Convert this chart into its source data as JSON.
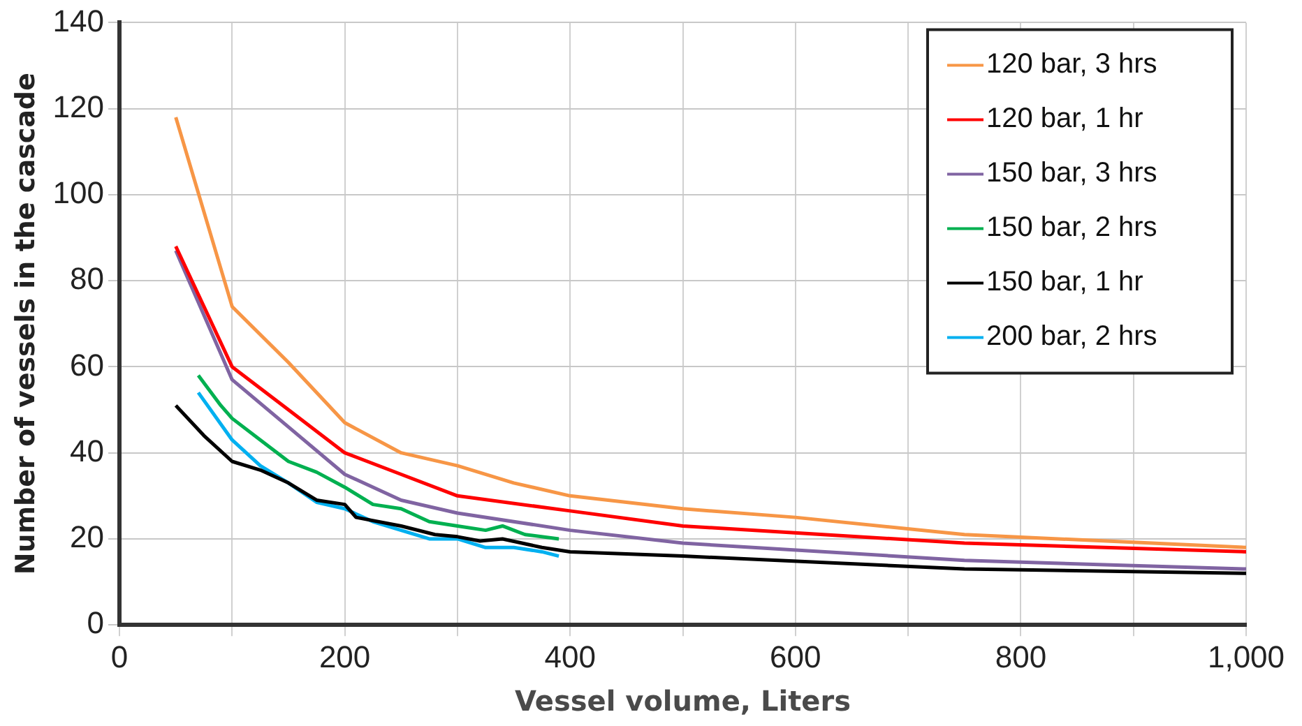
{
  "chart_data": {
    "type": "line",
    "xlabel": "Vessel volume, Liters",
    "ylabel": "Number of vessels in the cascade",
    "xlim": [
      0,
      1000
    ],
    "ylim": [
      0,
      140
    ],
    "xticks": [
      0,
      {
        "value": 100,
        "label": null
      },
      200,
      {
        "value": 300,
        "label": null
      },
      400,
      {
        "value": 500,
        "label": null
      },
      600,
      {
        "value": 700,
        "label": null
      },
      800,
      {
        "value": 900,
        "label": null
      },
      {
        "value": 1000,
        "label": "1,000"
      }
    ],
    "yticks": [
      0,
      20,
      40,
      60,
      80,
      100,
      120,
      140
    ],
    "grid": true,
    "legend": "top right",
    "marker": "none",
    "line_style": "solid",
    "series": [
      {
        "name": "120 bar, 3 hrs",
        "color": "#f79646",
        "x": [
          50,
          100,
          150,
          200,
          250,
          300,
          350,
          400,
          500,
          600,
          750,
          1000
        ],
        "values": [
          118,
          74,
          61,
          47,
          40,
          37,
          33,
          30,
          27,
          25,
          21,
          18
        ]
      },
      {
        "name": "120 bar, 1 hr",
        "color": "#ff0000",
        "x": [
          50,
          100,
          150,
          200,
          250,
          300,
          400,
          500,
          750,
          1000
        ],
        "values": [
          88,
          60,
          50,
          40,
          35,
          30,
          26.5,
          23,
          19,
          17
        ]
      },
      {
        "name": "150 bar, 3 hrs",
        "color": "#8064a2",
        "x": [
          50,
          100,
          150,
          200,
          250,
          300,
          400,
          500,
          750,
          1000
        ],
        "values": [
          87,
          57,
          46,
          35,
          29,
          26,
          22,
          19,
          15,
          13
        ]
      },
      {
        "name": "150 bar, 2 hrs",
        "color": "#00b050",
        "x": [
          70,
          90,
          100,
          125,
          150,
          175,
          200,
          225,
          250,
          275,
          300,
          325,
          340,
          360,
          390
        ],
        "values": [
          58,
          51,
          48,
          43,
          38,
          35.5,
          32,
          28,
          27,
          24,
          23,
          22,
          23,
          21,
          20
        ]
      },
      {
        "name": "150 bar, 1 hr",
        "color": "#000000",
        "x": [
          50,
          75,
          100,
          125,
          150,
          175,
          200,
          210,
          250,
          280,
          300,
          320,
          340,
          375,
          400,
          500,
          750,
          1000
        ],
        "values": [
          51,
          44,
          38,
          36,
          33,
          29,
          28,
          25,
          23,
          21,
          20.5,
          19.5,
          20,
          18,
          17,
          16,
          13,
          12
        ]
      },
      {
        "name": "200 bar, 2 hrs",
        "color": "#00b0f0",
        "x": [
          70,
          100,
          125,
          150,
          175,
          200,
          225,
          250,
          275,
          300,
          325,
          350,
          375,
          390
        ],
        "values": [
          54,
          43,
          37,
          33,
          28.5,
          27,
          24,
          22,
          20,
          20,
          18,
          18,
          17,
          16
        ]
      }
    ]
  }
}
